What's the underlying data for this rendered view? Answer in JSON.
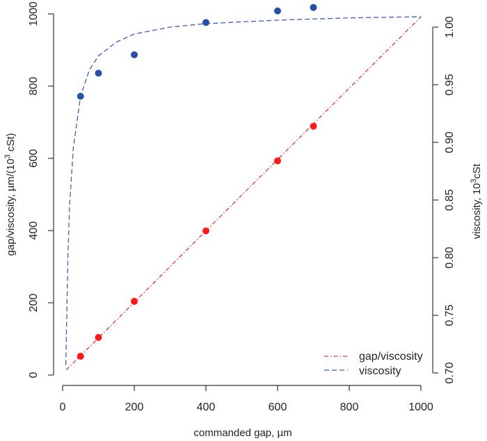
{
  "chart_data": {
    "type": "scatter",
    "xlabel": "commanded gap, µm",
    "ylabel_left": "gap/viscosity, µm/(10",
    "ylabel_left_sup": "3",
    "ylabel_left_tail": " cSt)",
    "ylabel_right": "viscosity, 10",
    "ylabel_right_sup": "3",
    "ylabel_right_tail": "cSt",
    "xlim": [
      0,
      1000
    ],
    "ylim_left": [
      0,
      1000
    ],
    "ylim_right": [
      0.7,
      1.0
    ],
    "x_ticks": [
      "0",
      "200",
      "400",
      "600",
      "800",
      "1000"
    ],
    "y_left_ticks": [
      "0",
      "200",
      "400",
      "600",
      "800",
      "1000"
    ],
    "y_right_ticks": [
      "0.70",
      "0.75",
      "0.80",
      "0.85",
      "0.90",
      "0.95",
      "1.00"
    ],
    "grid": false,
    "legend_position": "bottom-right",
    "series": [
      {
        "name": "gap/viscosity",
        "axis": "left",
        "color": "#ff1a1a",
        "line_color": "#e0303a",
        "line_style": "dot-dash",
        "points": {
          "x": [
            50,
            100,
            200,
            400,
            600,
            700
          ],
          "y": [
            52,
            104,
            204,
            399,
            593,
            689
          ]
        },
        "fit_line": {
          "x": [
            10,
            1000
          ],
          "y": [
            14,
            992
          ]
        }
      },
      {
        "name": "viscosity",
        "axis": "right",
        "color": "#2a4fa8",
        "line_color": "#3d5bb5",
        "line_style": "dashed",
        "points": {
          "x": [
            50,
            100,
            200,
            400,
            600,
            700
          ],
          "y": [
            0.94,
            0.96,
            0.976,
            1.004,
            1.014,
            1.017
          ]
        },
        "fit_line": {
          "x": [
            9,
            15,
            20,
            30,
            50,
            75,
            100,
            150,
            200,
            300,
            400,
            600,
            800,
            1000
          ],
          "y": [
            0.707,
            0.804,
            0.848,
            0.896,
            0.94,
            0.963,
            0.975,
            0.987,
            0.994,
            1.0,
            1.003,
            1.006,
            1.008,
            1.009
          ]
        }
      }
    ],
    "legend": [
      {
        "label": "gap/viscosity"
      },
      {
        "label": "viscosity"
      }
    ]
  }
}
